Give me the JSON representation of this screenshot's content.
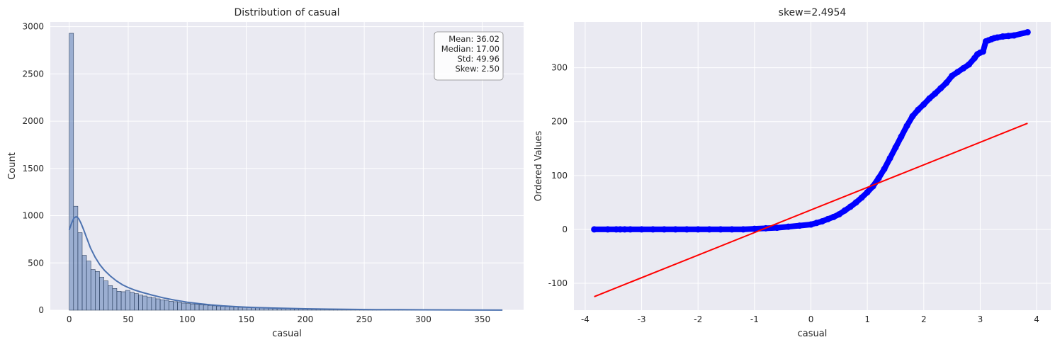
{
  "chart_data": [
    {
      "type": "bar",
      "title": "Distribution of casual",
      "xlabel": "casual",
      "ylabel": "Count",
      "xlim": [
        -16,
        385
      ],
      "ylim": [
        0,
        3050
      ],
      "xticks": [
        0,
        50,
        100,
        150,
        200,
        250,
        300,
        350
      ],
      "yticks": [
        0,
        500,
        1000,
        1500,
        2000,
        2500,
        3000
      ],
      "grid": true,
      "bin_width": 3.67,
      "counts": [
        2930,
        1100,
        820,
        580,
        520,
        430,
        410,
        350,
        310,
        260,
        230,
        200,
        195,
        210,
        190,
        175,
        160,
        150,
        140,
        130,
        120,
        110,
        105,
        95,
        90,
        80,
        75,
        70,
        66,
        62,
        58,
        54,
        50,
        46,
        43,
        40,
        37,
        34,
        32,
        30,
        28,
        27,
        26,
        25,
        24,
        23,
        22,
        21,
        20,
        19,
        18,
        17,
        16,
        15,
        14,
        13,
        12,
        12,
        11,
        10,
        10,
        9,
        9,
        8,
        8,
        7,
        7,
        6,
        6,
        5,
        5,
        5,
        4,
        4,
        4,
        3,
        3,
        3,
        3,
        2,
        2,
        2,
        2,
        2,
        2,
        1,
        1,
        1,
        1,
        1,
        1,
        1,
        1,
        1,
        1,
        1,
        1,
        1,
        1,
        1
      ],
      "kde": {
        "x": [
          0,
          2,
          4,
          6,
          8,
          10,
          12,
          15,
          18,
          22,
          26,
          30,
          35,
          40,
          45,
          50,
          55,
          60,
          70,
          80,
          90,
          100,
          110,
          120,
          130,
          140,
          150,
          160,
          180,
          200,
          220,
          240,
          260,
          280,
          300,
          320,
          340,
          367
        ],
        "y": [
          850,
          920,
          975,
          990,
          970,
          920,
          860,
          760,
          660,
          560,
          480,
          420,
          360,
          310,
          270,
          240,
          215,
          195,
          160,
          130,
          105,
          85,
          70,
          56,
          46,
          38,
          32,
          27,
          20,
          15,
          11,
          8,
          6,
          5,
          4,
          3,
          2,
          1
        ]
      },
      "stats_box": {
        "location": "top-right",
        "lines": [
          "Mean: 36.02",
          "Median: 17.00",
          "Std: 49.96",
          "Skew: 2.50"
        ]
      }
    },
    {
      "type": "scatter",
      "title": "skew=2.4954",
      "xlabel": "casual",
      "ylabel": "Ordered Values",
      "xlim": [
        -4.2,
        4.25
      ],
      "ylim": [
        -150,
        385
      ],
      "xticks": [
        -4,
        -3,
        -2,
        -1,
        0,
        1,
        2,
        3,
        4
      ],
      "yticks": [
        -100,
        0,
        100,
        200,
        300
      ],
      "grid": true,
      "fit_line": {
        "slope": 41.9,
        "intercept": 36.0,
        "x_range": [
          -3.84,
          3.84
        ],
        "color": "#ff0000"
      },
      "points": {
        "x": [
          -3.84,
          -3.6,
          -3.45,
          -3.38,
          -3.3,
          -3.2,
          -3.0,
          -2.8,
          -2.6,
          -2.4,
          -2.2,
          -2.0,
          -1.8,
          -1.6,
          -1.4,
          -1.2,
          -1.0,
          -0.8,
          -0.6,
          -0.4,
          -0.2,
          0.0,
          0.1,
          0.2,
          0.3,
          0.4,
          0.5,
          0.6,
          0.7,
          0.8,
          0.9,
          1.0,
          1.1,
          1.2,
          1.3,
          1.4,
          1.5,
          1.6,
          1.7,
          1.8,
          1.9,
          2.0,
          2.1,
          2.2,
          2.3,
          2.4,
          2.5,
          2.6,
          2.7,
          2.8,
          2.9,
          2.95,
          3.0,
          3.05,
          3.1,
          3.15,
          3.2,
          3.25,
          3.3,
          3.4,
          3.5,
          3.6,
          3.84
        ],
        "y": [
          0,
          0,
          0,
          0,
          0,
          0,
          0,
          0,
          0,
          0,
          0,
          0,
          0,
          0,
          0,
          0,
          1,
          2,
          3,
          5,
          7,
          9,
          12,
          15,
          19,
          23,
          28,
          35,
          42,
          50,
          59,
          69,
          80,
          95,
          112,
          132,
          152,
          172,
          192,
          210,
          222,
          232,
          243,
          252,
          262,
          272,
          285,
          292,
          299,
          306,
          318,
          325,
          328,
          330,
          349,
          351,
          353,
          355,
          356,
          358,
          359,
          360,
          366
        ],
        "color": "#0000ff"
      }
    }
  ]
}
